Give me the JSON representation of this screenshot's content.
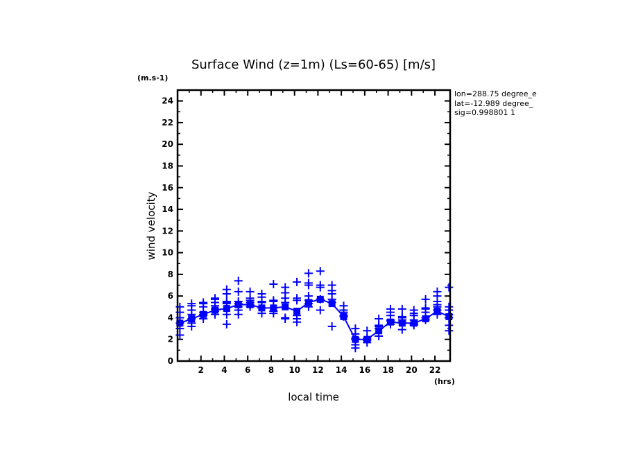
{
  "chart_data": {
    "type": "scatter",
    "title": "Surface Wind (z=1m) (Ls=60-65) [m/s]",
    "ylabel": "wind velocity",
    "yunits": "(m.s-1)",
    "xlabel": "local time",
    "xunits": "(hrs)",
    "xlim": [
      0,
      23.3
    ],
    "ylim": [
      0,
      25
    ],
    "xticks": [
      2,
      4,
      6,
      8,
      10,
      12,
      14,
      16,
      18,
      20,
      22
    ],
    "yticks": [
      0,
      2,
      4,
      6,
      8,
      10,
      12,
      14,
      16,
      18,
      20,
      22,
      24
    ],
    "info": [
      "lon=288.75 degree_e",
      "lat=-12.989 degree_",
      "sig=0.998801 1"
    ],
    "color": "#0000ff",
    "series": [
      {
        "name": "mean",
        "kind": "line",
        "x": [
          0.2,
          1.2,
          2.2,
          3.2,
          4.2,
          5.2,
          6.2,
          7.2,
          8.2,
          9.2,
          10.2,
          11.2,
          12.2,
          13.2,
          14.2,
          15.2,
          16.2,
          17.2,
          18.2,
          19.2,
          20.2,
          21.2,
          22.2,
          23.2
        ],
        "y": [
          3.5,
          3.9,
          4.3,
          4.7,
          4.85,
          5.2,
          5.2,
          4.9,
          4.9,
          5.0,
          4.6,
          5.4,
          5.7,
          5.3,
          4.1,
          2.0,
          2.0,
          2.8,
          3.6,
          3.5,
          3.5,
          3.9,
          4.6,
          4.1
        ]
      },
      {
        "name": "samples",
        "kind": "plus",
        "values": [
          [
            2.4,
            3.0,
            3.5,
            4.0,
            4.5,
            5.0
          ],
          [
            3.2,
            3.5,
            3.9,
            4.3,
            4.7,
            5.1,
            5.3
          ],
          [
            3.9,
            4.2,
            4.3,
            4.5,
            5.0,
            5.3,
            5.4
          ],
          [
            4.3,
            4.6,
            4.8,
            5.1,
            5.4,
            5.7,
            5.8
          ],
          [
            3.4,
            4.3,
            5.3,
            5.4,
            5.5,
            6.2,
            6.6
          ],
          [
            4.3,
            4.7,
            5.0,
            5.3,
            5.5,
            6.4,
            7.4
          ],
          [
            5.0,
            5.2,
            5.4,
            5.6,
            5.8,
            6.4
          ],
          [
            4.4,
            4.9,
            5.4,
            5.5,
            5.9,
            6.2
          ],
          [
            4.4,
            4.6,
            5.5,
            5.6,
            7.1
          ],
          [
            3.9,
            4.0,
            5.4,
            5.8,
            6.3,
            6.8
          ],
          [
            3.6,
            3.9,
            4.2,
            5.6,
            5.8,
            7.3
          ],
          [
            5.0,
            5.3,
            5.6,
            6.0,
            7.0,
            7.2,
            8.1
          ],
          [
            4.7,
            5.7,
            6.8,
            7.0,
            8.3
          ],
          [
            3.2,
            5.4,
            5.7,
            6.2,
            6.5,
            7.0
          ],
          [
            4.1,
            4.2,
            4.5,
            4.7,
            5.1
          ],
          [
            1.2,
            1.5,
            2.0,
            2.1,
            2.5,
            3.0
          ],
          [
            1.7,
            1.9,
            2.0,
            2.1,
            2.8
          ],
          [
            2.3,
            3.0,
            3.2,
            3.3,
            3.9
          ],
          [
            3.4,
            3.7,
            3.8,
            4.2,
            4.5,
            4.8
          ],
          [
            2.9,
            3.6,
            3.8,
            4.0,
            4.1,
            4.8
          ],
          [
            3.3,
            3.4,
            3.5,
            3.8,
            4.2,
            4.4,
            4.7
          ],
          [
            3.8,
            4.0,
            4.5,
            4.8,
            4.9,
            5.7
          ],
          [
            4.3,
            4.7,
            5.0,
            5.2,
            5.5,
            6.0,
            6.4
          ],
          [
            2.8,
            3.3,
            4.0,
            4.3,
            4.7,
            5.0,
            6.8
          ]
        ]
      }
    ]
  }
}
